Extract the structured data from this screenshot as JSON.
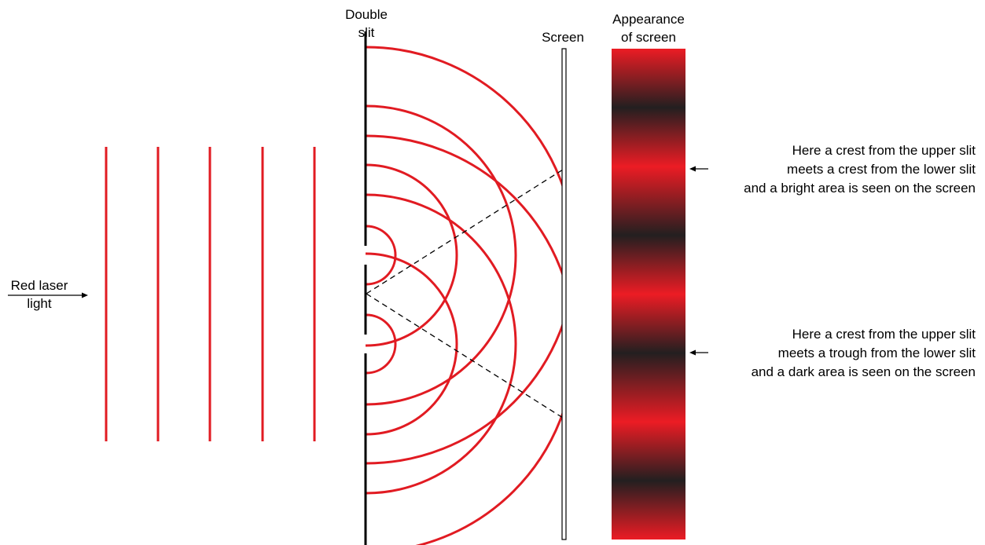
{
  "labels": {
    "double_slit_line1": "Double",
    "double_slit_line2": "slit",
    "screen": "Screen",
    "appearance_line1": "Appearance",
    "appearance_line2": "of screen",
    "laser_line1": "Red laser",
    "laser_line2": "light"
  },
  "annotations": [
    {
      "lines": [
        "Here a crest from the upper slit",
        "meets a crest from the lower slit",
        "and a bright area is seen on the screen"
      ]
    },
    {
      "lines": [
        "Here a crest from the upper slit",
        "meets a trough from the lower slit",
        "and a dark area is seen on the screen"
      ]
    }
  ],
  "colors": {
    "wave": "#e11b22",
    "bright": "#ec1c24",
    "dark": "#231f20",
    "ink": "#000000"
  }
}
